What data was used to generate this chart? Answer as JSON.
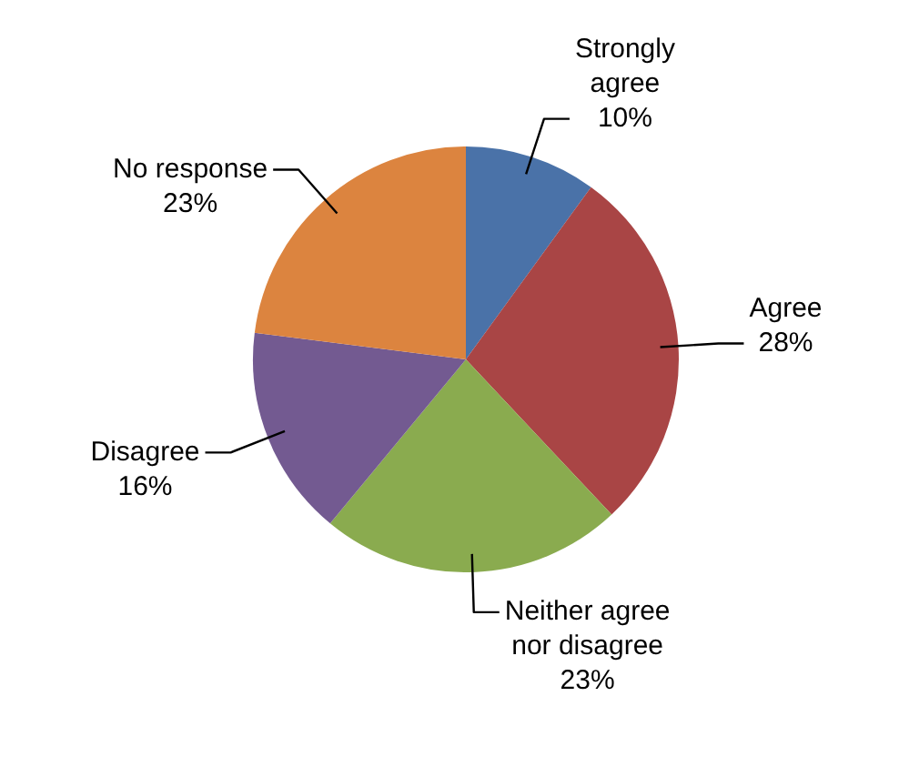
{
  "chart_data": {
    "type": "pie",
    "categories": [
      "Strongly agree",
      "Agree",
      "Neither agree nor disagree",
      "Disagree",
      "No response"
    ],
    "values": [
      10,
      28,
      23,
      16,
      23
    ],
    "value_labels": [
      "10%",
      "28%",
      "23%",
      "16%",
      "23%"
    ],
    "colors": [
      "#4a72a8",
      "#a94545",
      "#8aab4f",
      "#735a91",
      "#dc843f"
    ],
    "legend": false
  }
}
